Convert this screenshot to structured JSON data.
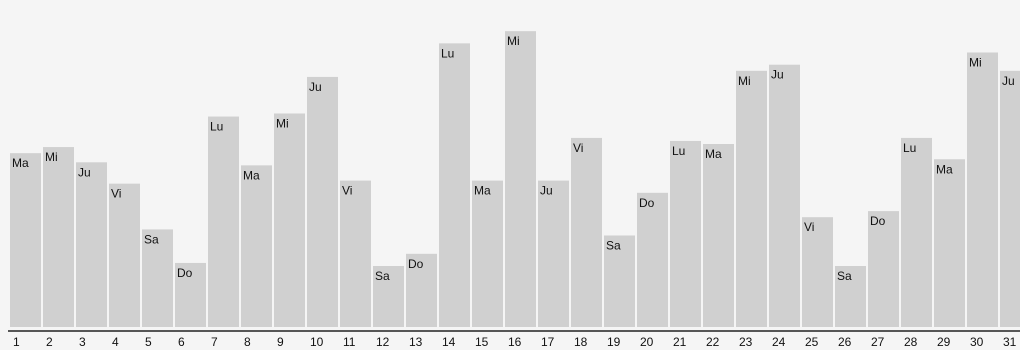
{
  "chart_data": {
    "type": "bar",
    "title": "",
    "xlabel": "",
    "ylabel": "",
    "categories": [
      "1",
      "2",
      "3",
      "4",
      "5",
      "6",
      "7",
      "8",
      "9",
      "10",
      "11",
      "12",
      "13",
      "14",
      "15",
      "16",
      "17",
      "18",
      "19",
      "20",
      "21",
      "22",
      "23",
      "24",
      "25",
      "26",
      "27",
      "28",
      "29",
      "30",
      "31"
    ],
    "labels": [
      "Ma",
      "Mi",
      "Ju",
      "Vi",
      "Sa",
      "Do",
      "Lu",
      "Ma",
      "Mi",
      "Ju",
      "Vi",
      "Sa",
      "Do",
      "Lu",
      "Ma",
      "Mi",
      "Ju",
      "Vi",
      "Sa",
      "Do",
      "Lu",
      "Ma",
      "Mi",
      "Ju",
      "Vi",
      "Sa",
      "Do",
      "Lu",
      "Ma",
      "Mi",
      "Ju"
    ],
    "values": [
      57,
      59,
      54,
      47,
      32,
      21,
      69,
      53,
      70,
      82,
      48,
      20,
      24,
      93,
      48,
      97,
      48,
      62,
      30,
      44,
      61,
      60,
      84,
      86,
      36,
      20,
      38,
      62,
      55,
      90,
      84
    ],
    "ylim": [
      0,
      100
    ],
    "grid": false,
    "legend": "none"
  }
}
